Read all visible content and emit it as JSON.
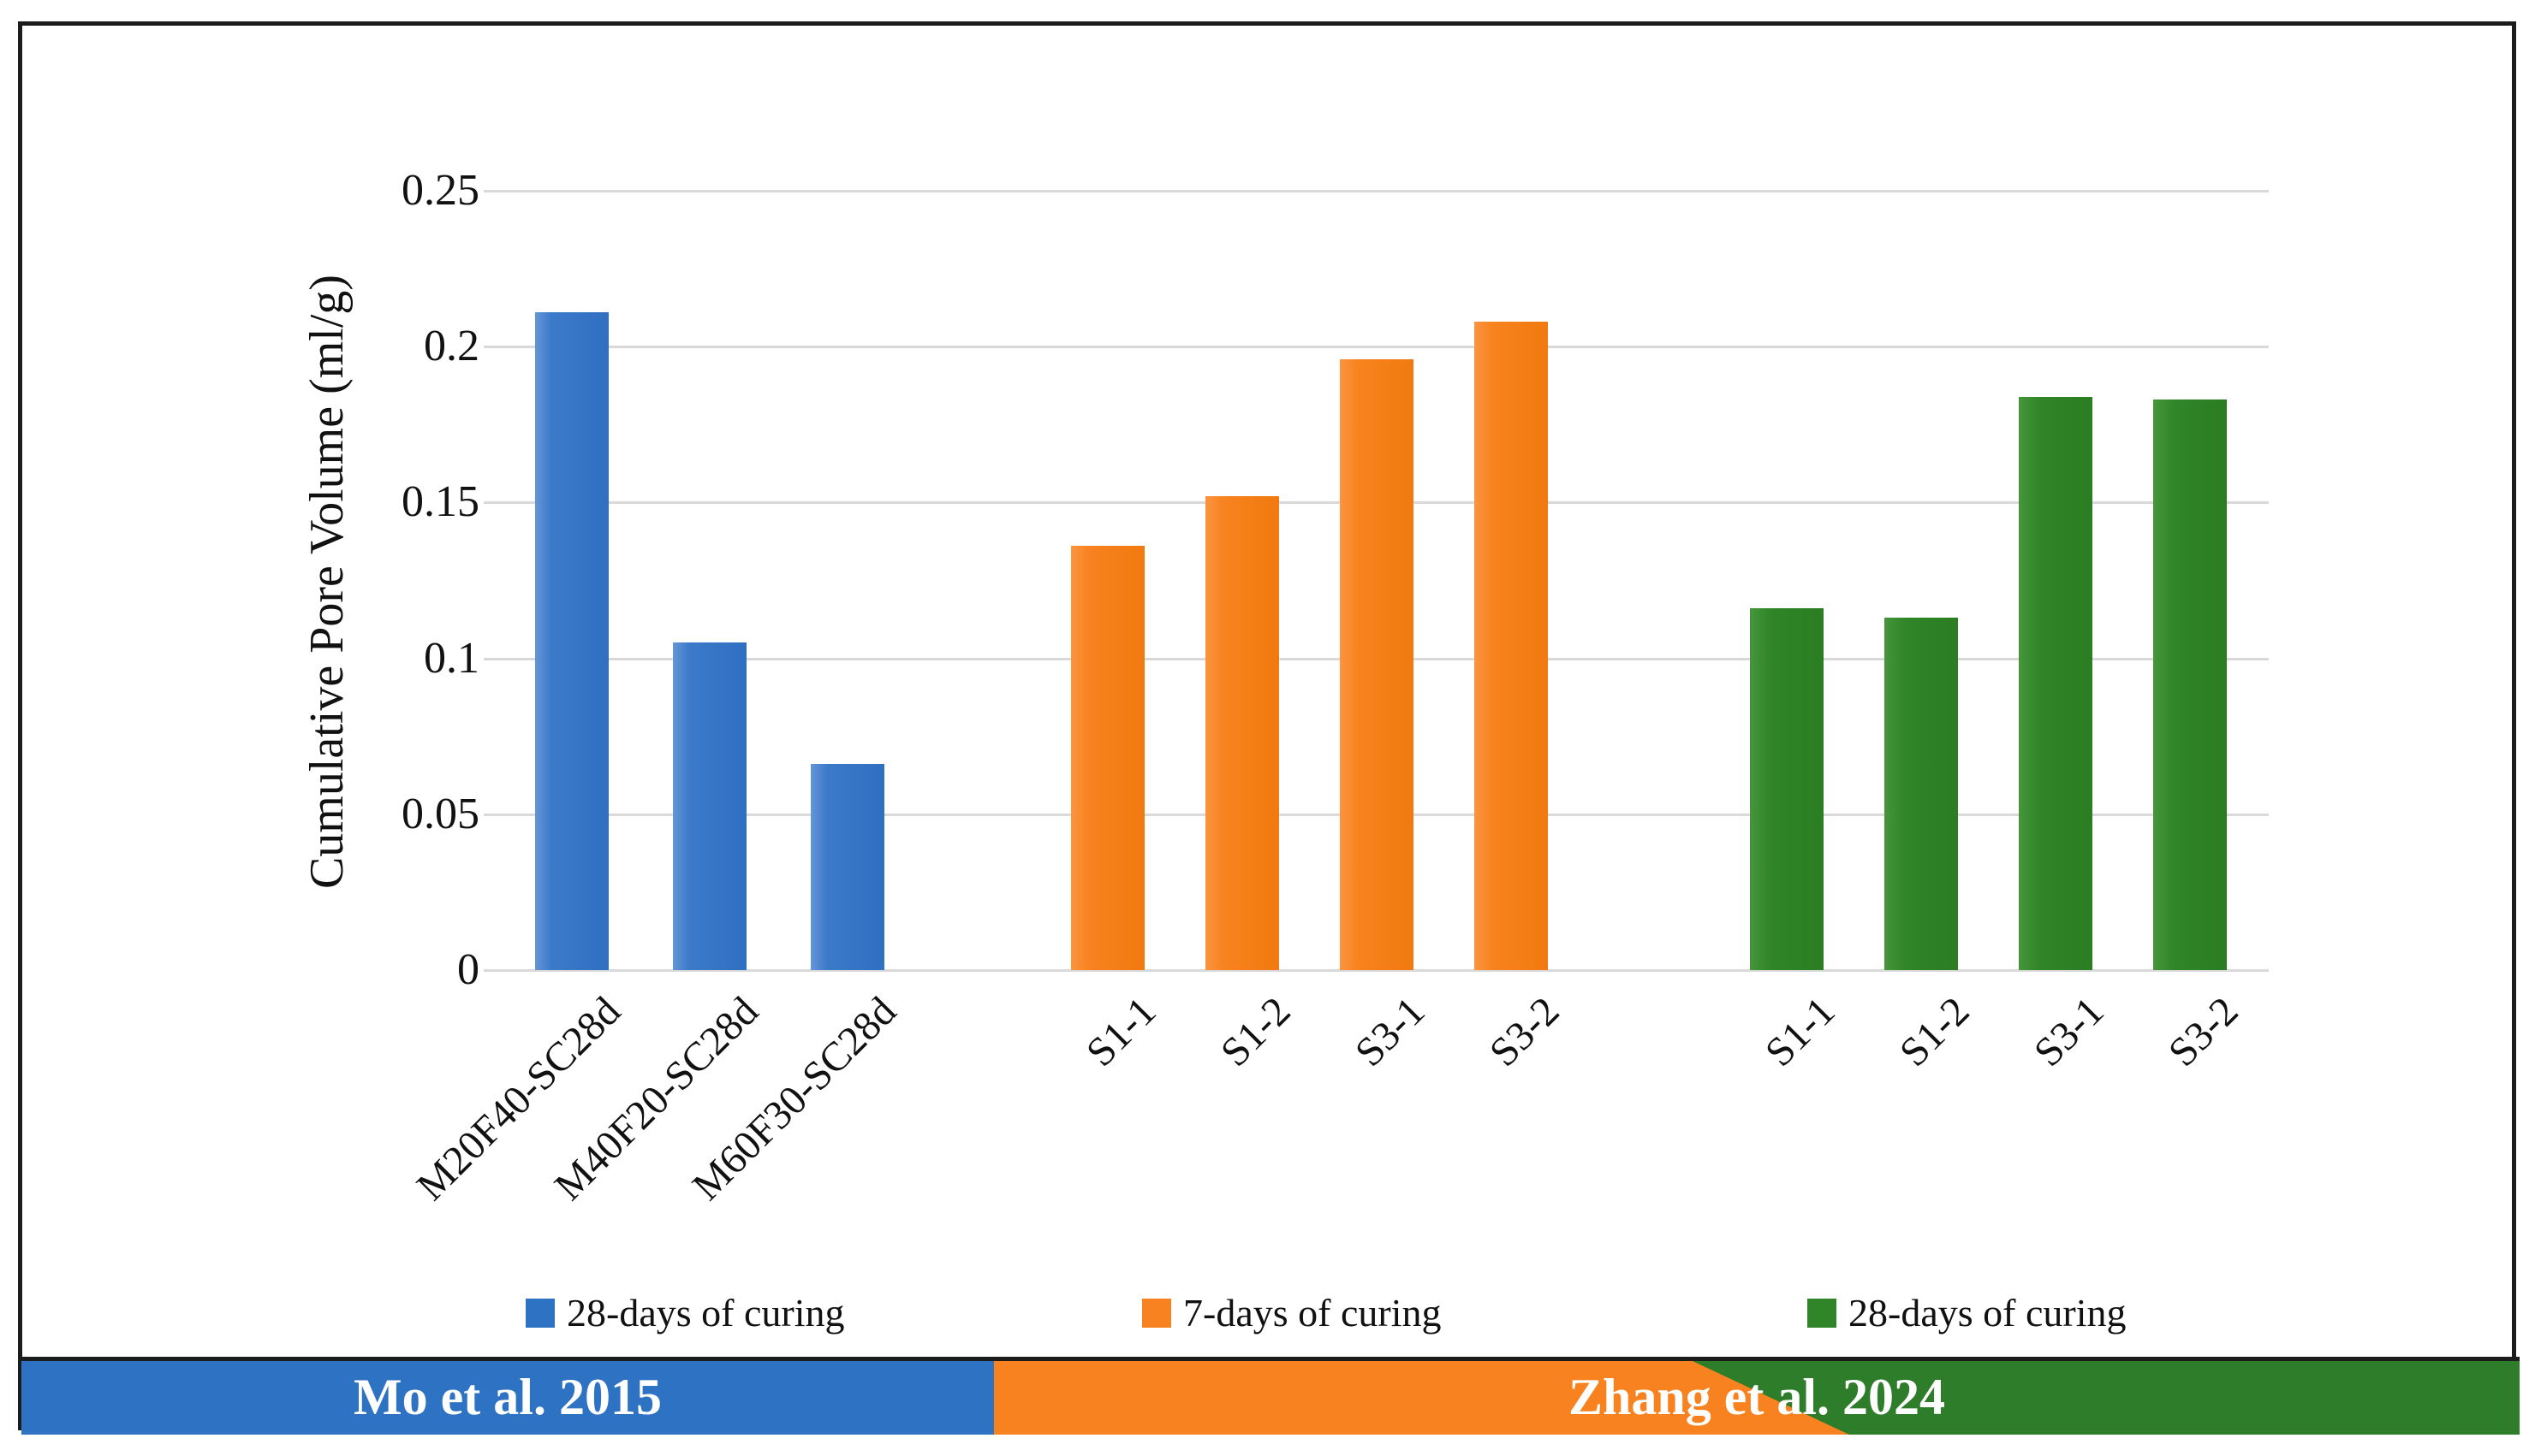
{
  "chart_data": {
    "type": "bar",
    "title": "",
    "ylabel": "Cumulative Pore Volume (ml/g)",
    "xlabel": "",
    "ylim": [
      0,
      0.25
    ],
    "grid": "horizontal",
    "ytick_labels": [
      "0",
      "0.05",
      "0.1",
      "0.15",
      "0.2",
      "0.25"
    ],
    "yticks": [
      0,
      0.05,
      0.1,
      0.15,
      0.2,
      0.25
    ],
    "groups": [
      {
        "study": "Mo et al. 2015",
        "series_label": "28-days of curing",
        "color": "#2e72c4",
        "categories": [
          "M20F40-SC28d",
          "M40F20-SC28d",
          "M60F30-SC28d"
        ],
        "values": [
          0.211,
          0.105,
          0.066
        ]
      },
      {
        "study": "Zhang et al. 2024",
        "series_label": "7-days of curing",
        "color": "#f8821f",
        "categories": [
          "S1-1",
          "S1-2",
          "S3-1",
          "S3-2"
        ],
        "values": [
          0.136,
          0.152,
          0.196,
          0.208
        ]
      },
      {
        "study": "Zhang et al. 2024",
        "series_label": "28-days of curing",
        "color": "#2f8527",
        "categories": [
          "S1-1",
          "S1-2",
          "S3-1",
          "S3-2"
        ],
        "values": [
          0.116,
          0.113,
          0.184,
          0.183
        ]
      }
    ],
    "legend": [
      {
        "label": "28-days of curing",
        "color": "#2e72c4"
      },
      {
        "label": "7-days of curing",
        "color": "#f8821f"
      },
      {
        "label": "28-days of curing",
        "color": "#2f8527"
      }
    ],
    "legend_position": "bottom",
    "banner": {
      "segments": [
        {
          "label": "Mo et al. 2015",
          "color": "#2e72c4",
          "text_color": "#ffffff"
        },
        {
          "label": "Zhang et al. 2024",
          "colors": [
            "#f8821f",
            "#2e7d2a"
          ],
          "text_color": "#ffffff"
        }
      ]
    },
    "gridline_color": "#d9d9d9"
  }
}
